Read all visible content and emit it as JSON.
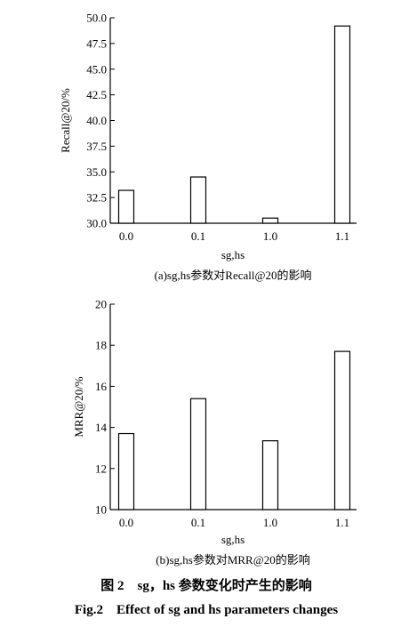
{
  "chart_data": [
    {
      "type": "bar",
      "categories": [
        "0.0",
        "0.1",
        "1.0",
        "1.1"
      ],
      "values": [
        33.2,
        34.5,
        30.5,
        49.2
      ],
      "xlabel": "sg,hs",
      "ylabel": "Recall@20/%",
      "ylim": [
        30.0,
        50.0
      ],
      "yticks": [
        "30.0",
        "32.5",
        "35.0",
        "37.5",
        "40.0",
        "42.5",
        "45.0",
        "47.5",
        "50.0"
      ],
      "caption": "(a)sg,hs参数对Recall@20的影响",
      "grid": false,
      "legend": "none"
    },
    {
      "type": "bar",
      "categories": [
        "0.0",
        "0.1",
        "1.0",
        "1.1"
      ],
      "values": [
        13.7,
        15.4,
        13.35,
        17.7
      ],
      "xlabel": "sg,hs",
      "ylabel": "MRR@20/%",
      "ylim": [
        10,
        20
      ],
      "yticks": [
        "10",
        "12",
        "14",
        "16",
        "18",
        "20"
      ],
      "caption": "(b)sg,hs参数对MRR@20的影响",
      "grid": false,
      "legend": "none"
    }
  ],
  "figure": {
    "caption_cn": "图 2　sg，hs 参数变化时产生的影响",
    "caption_en": "Fig.2　Effect of sg and hs parameters changes"
  }
}
